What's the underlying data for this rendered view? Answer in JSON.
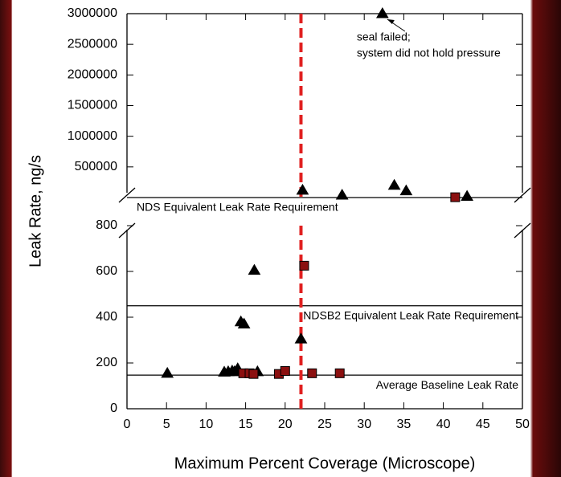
{
  "chart_data": [
    {
      "type": "scatter",
      "xlim": [
        0,
        50
      ],
      "xticks": [
        0,
        5,
        10,
        15,
        20,
        25,
        30,
        35,
        40,
        45,
        50
      ],
      "ylim": [
        0,
        3000000
      ],
      "yticks": [
        500000,
        1000000,
        1500000,
        2000000,
        2500000,
        3000000
      ],
      "series": [
        {
          "marker": "triangle",
          "color": "#000000",
          "x": [
            22.2,
            27.2,
            32.3,
            33.8,
            35.3,
            43
          ],
          "values": [
            120000,
            40000,
            3000000,
            200000,
            110000,
            20000
          ]
        },
        {
          "marker": "square",
          "color": "#8b1010",
          "x": [
            41.5
          ],
          "values": [
            5000
          ]
        }
      ],
      "reference_lines": [
        {
          "label": "NDS Equivalent Leak Rate Requirement",
          "value": 0
        }
      ],
      "annotation": {
        "lines": [
          "seal failed;",
          "system did not hold pressure"
        ],
        "x": 32.3,
        "y": 3000000
      },
      "vline": {
        "value": 22,
        "color": "#e02020"
      }
    },
    {
      "type": "scatter",
      "xlabel": "Maximum Percent Coverage (Microscope)",
      "ylabel": "Leak Rate, ng/s",
      "xlim": [
        0,
        50
      ],
      "xticks": [
        0,
        5,
        10,
        15,
        20,
        25,
        30,
        35,
        40,
        45,
        50
      ],
      "ylim": [
        0,
        800
      ],
      "yticks": [
        0,
        200,
        400,
        600,
        800
      ],
      "series": [
        {
          "marker": "triangle",
          "color": "#000000",
          "x": [
            5.1,
            12.3,
            12.8,
            13.3,
            13.6,
            14,
            14.4,
            14.8,
            16.1,
            16.5,
            22
          ],
          "values": [
            155,
            160,
            162,
            165,
            162,
            175,
            380,
            370,
            605,
            162,
            305
          ]
        },
        {
          "marker": "square",
          "color": "#8b1010",
          "x": [
            14.7,
            15.5,
            16,
            19.2,
            20,
            22.4,
            23.4,
            26.9
          ],
          "values": [
            155,
            155,
            152,
            152,
            165,
            625,
            155,
            155
          ]
        }
      ],
      "reference_lines": [
        {
          "label": "NDSB2 Equivalent Leak Rate Requirement",
          "value": 450
        },
        {
          "label": "Average Baseline Leak Rate",
          "value": 147
        }
      ],
      "vline": {
        "value": 22,
        "color": "#e02020"
      }
    }
  ]
}
